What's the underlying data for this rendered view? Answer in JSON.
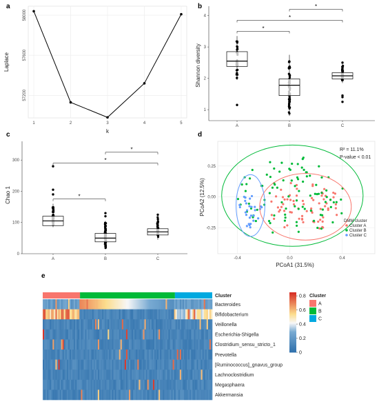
{
  "chart_data": [
    {
      "id": "a",
      "panel_letter": "a",
      "type": "line",
      "x": [
        1,
        2,
        3,
        4,
        5
      ],
      "y": [
        58040,
        57130,
        56980,
        57320,
        58010
      ],
      "xlabel": "k",
      "ylabel": "Laplace",
      "xticks": [
        "1",
        "2",
        "3",
        "4",
        "5"
      ],
      "yticks": [
        57200,
        57600,
        58000
      ],
      "xlim": [
        0.85,
        5.15
      ],
      "ylim": [
        56975,
        58090
      ],
      "grid": true
    },
    {
      "id": "b",
      "panel_letter": "b",
      "type": "box",
      "categories": [
        "A",
        "B",
        "C"
      ],
      "ylabel": "Shannon diversity",
      "yticks": [
        1,
        2,
        3,
        4
      ],
      "ylim": [
        0.65,
        4.3
      ],
      "boxes": [
        {
          "q1": 2.38,
          "median": 2.55,
          "q3": 2.85,
          "whisker_low": 1.95,
          "whisker_high": 3.35,
          "outliers": [
            1.15
          ]
        },
        {
          "q1": 1.45,
          "median": 1.78,
          "q3": 1.98,
          "whisker_low": 0.8,
          "whisker_high": 2.75,
          "outliers": []
        },
        {
          "q1": 1.98,
          "median": 2.08,
          "q3": 2.18,
          "whisker_low": 1.85,
          "whisker_high": 2.45,
          "outliers": [
            1.45,
            1.4,
            1.25,
            2.5
          ]
        }
      ],
      "significance": [
        {
          "from": "A",
          "to": "B",
          "label": "*",
          "y": 3.5
        },
        {
          "from": "A",
          "to": "C",
          "label": "*",
          "y": 3.85
        },
        {
          "from": "B",
          "to": "C",
          "label": "*",
          "y": 4.2
        }
      ]
    },
    {
      "id": "c",
      "panel_letter": "c",
      "type": "box",
      "categories": [
        "A",
        "B",
        "C"
      ],
      "ylabel": "Chao 1",
      "yticks": [
        0,
        100,
        200,
        300
      ],
      "ylim": [
        0,
        360
      ],
      "boxes": [
        {
          "q1": 90,
          "median": 105,
          "q3": 120,
          "whisker_low": 85,
          "whisker_high": 160,
          "outliers": [
            280,
            205,
            190
          ]
        },
        {
          "q1": 38,
          "median": 50,
          "q3": 65,
          "whisker_low": 15,
          "whisker_high": 105,
          "outliers": [
            130,
            120
          ]
        },
        {
          "q1": 60,
          "median": 70,
          "q3": 80,
          "whisker_low": 45,
          "whisker_high": 120,
          "outliers": [
            125
          ]
        }
      ],
      "significance": [
        {
          "from": "A",
          "to": "B",
          "label": "*",
          "y": 175
        },
        {
          "from": "A",
          "to": "C",
          "label": "*",
          "y": 290
        },
        {
          "from": "B",
          "to": "C",
          "label": "*",
          "y": 325
        }
      ]
    },
    {
      "id": "d",
      "panel_letter": "d",
      "type": "scatter",
      "xlabel": "PCoA1 (31.5%)",
      "ylabel": "PCoA2 (12.5%)",
      "xticks": [
        -0.4,
        0.0,
        0.4
      ],
      "yticks": [
        -0.25,
        0.0,
        0.25
      ],
      "xlim": [
        -0.55,
        0.65
      ],
      "ylim": [
        -0.46,
        0.45
      ],
      "annotation_r2": "R² = 11.1%",
      "annotation_p": "P-value < 0.01",
      "legend_title": "DMM cluster",
      "legend_position": "bottom-right",
      "series": [
        {
          "name": "Cluster A",
          "color": "#F8766D",
          "ellipse": {
            "cx": 0.12,
            "cy": -0.08,
            "rx": 0.35,
            "ry": 0.27
          }
        },
        {
          "name": "Cluster B",
          "color": "#00BA38",
          "ellipse": {
            "cx": 0.02,
            "cy": 0.01,
            "rx": 0.54,
            "ry": 0.41
          }
        },
        {
          "name": "Cluster C",
          "color": "#619CFF",
          "ellipse": {
            "cx": -0.3,
            "cy": -0.07,
            "rx": 0.11,
            "ry": 0.25
          }
        }
      ]
    },
    {
      "id": "e",
      "panel_letter": "e",
      "type": "heatmap",
      "rows": [
        "Bacteroides",
        "Bifidobacterium",
        "Veillonella",
        "Escherichia-Shigella",
        "Clostridium_sensu_stricto_1",
        "Prevotella",
        "[Ruminococcus]_gnavus_group",
        "Lachnoclostridium",
        "Megasphaera",
        "Akkermansia"
      ],
      "column_groups": [
        {
          "cluster": "A",
          "fraction": 0.22
        },
        {
          "cluster": "B",
          "fraction": 0.56
        },
        {
          "cluster": "C",
          "fraction": 0.22
        }
      ],
      "cluster_legend_title": "Cluster",
      "cluster_legend": [
        {
          "label": "A",
          "color": "#F8766D"
        },
        {
          "label": "B",
          "color": "#00BA38"
        },
        {
          "label": "C",
          "color": "#00A9E0"
        }
      ],
      "colorbar_ticks": [
        0,
        0.2,
        0.4,
        0.6,
        0.8
      ],
      "colorbar_range": [
        0,
        0.85
      ]
    }
  ]
}
